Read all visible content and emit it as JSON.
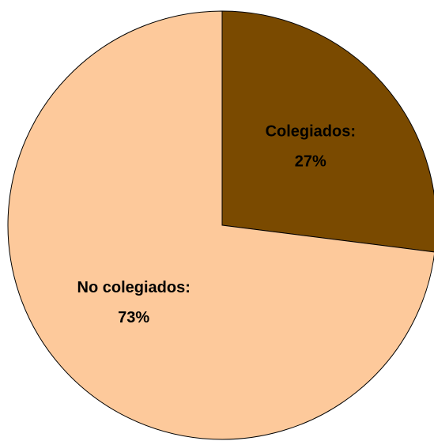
{
  "chart_data": {
    "type": "pie",
    "categories": [
      "Colegiados:",
      "No colegiados:"
    ],
    "values": [
      27,
      73
    ],
    "value_labels": [
      "27%",
      "73%"
    ],
    "colors": [
      "#7a4a00",
      "#fdc99b"
    ]
  }
}
